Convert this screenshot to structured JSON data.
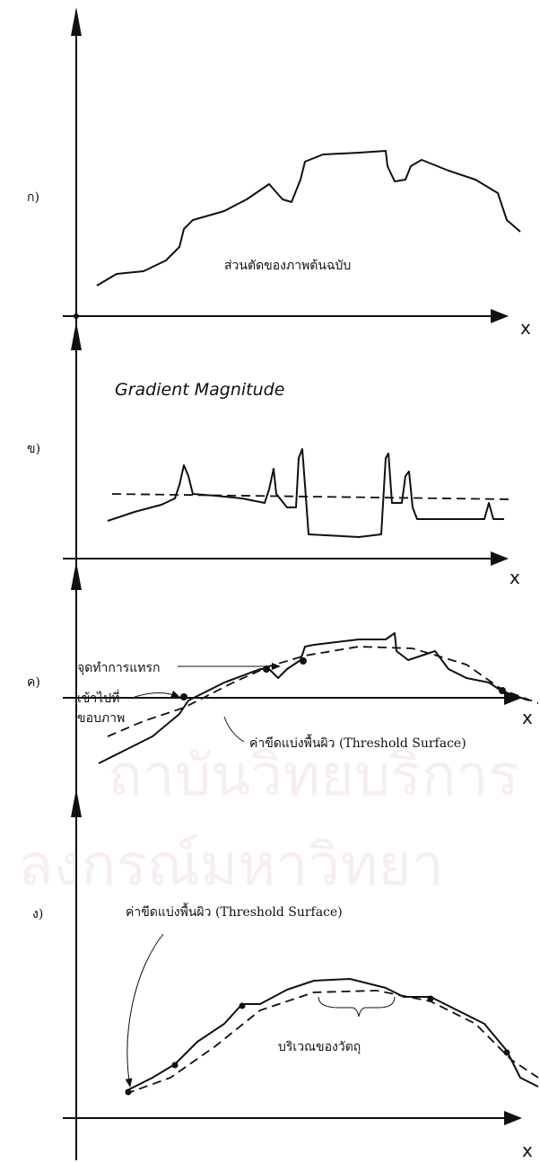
{
  "panels": [
    {
      "label": "ก)",
      "annotations": [
        "ส่วนตัดของภาพต้นฉบับ"
      ],
      "x_label": "x"
    },
    {
      "label": "ข)",
      "annotations": [
        "Gradient Magnitude"
      ],
      "x_label": "x"
    },
    {
      "label": "ค)",
      "annotations": [
        "จุดทำการแทรก",
        "เข้าไปที่",
        "ขอบภาพ",
        "ค่าขีดแบ่งพื้นผิว (Threshold Surface)"
      ],
      "x_label": "x"
    },
    {
      "label": "ง)",
      "annotations": [
        "ค่าขีดแบ่งพื้นผิว (Threshold Surface)",
        "บริเวณของวัตถุ"
      ],
      "x_label": "x"
    }
  ],
  "watermark": [
    "ถาบันวิทยบริการ",
    "ลงกรณ์มหาวิทยา"
  ]
}
